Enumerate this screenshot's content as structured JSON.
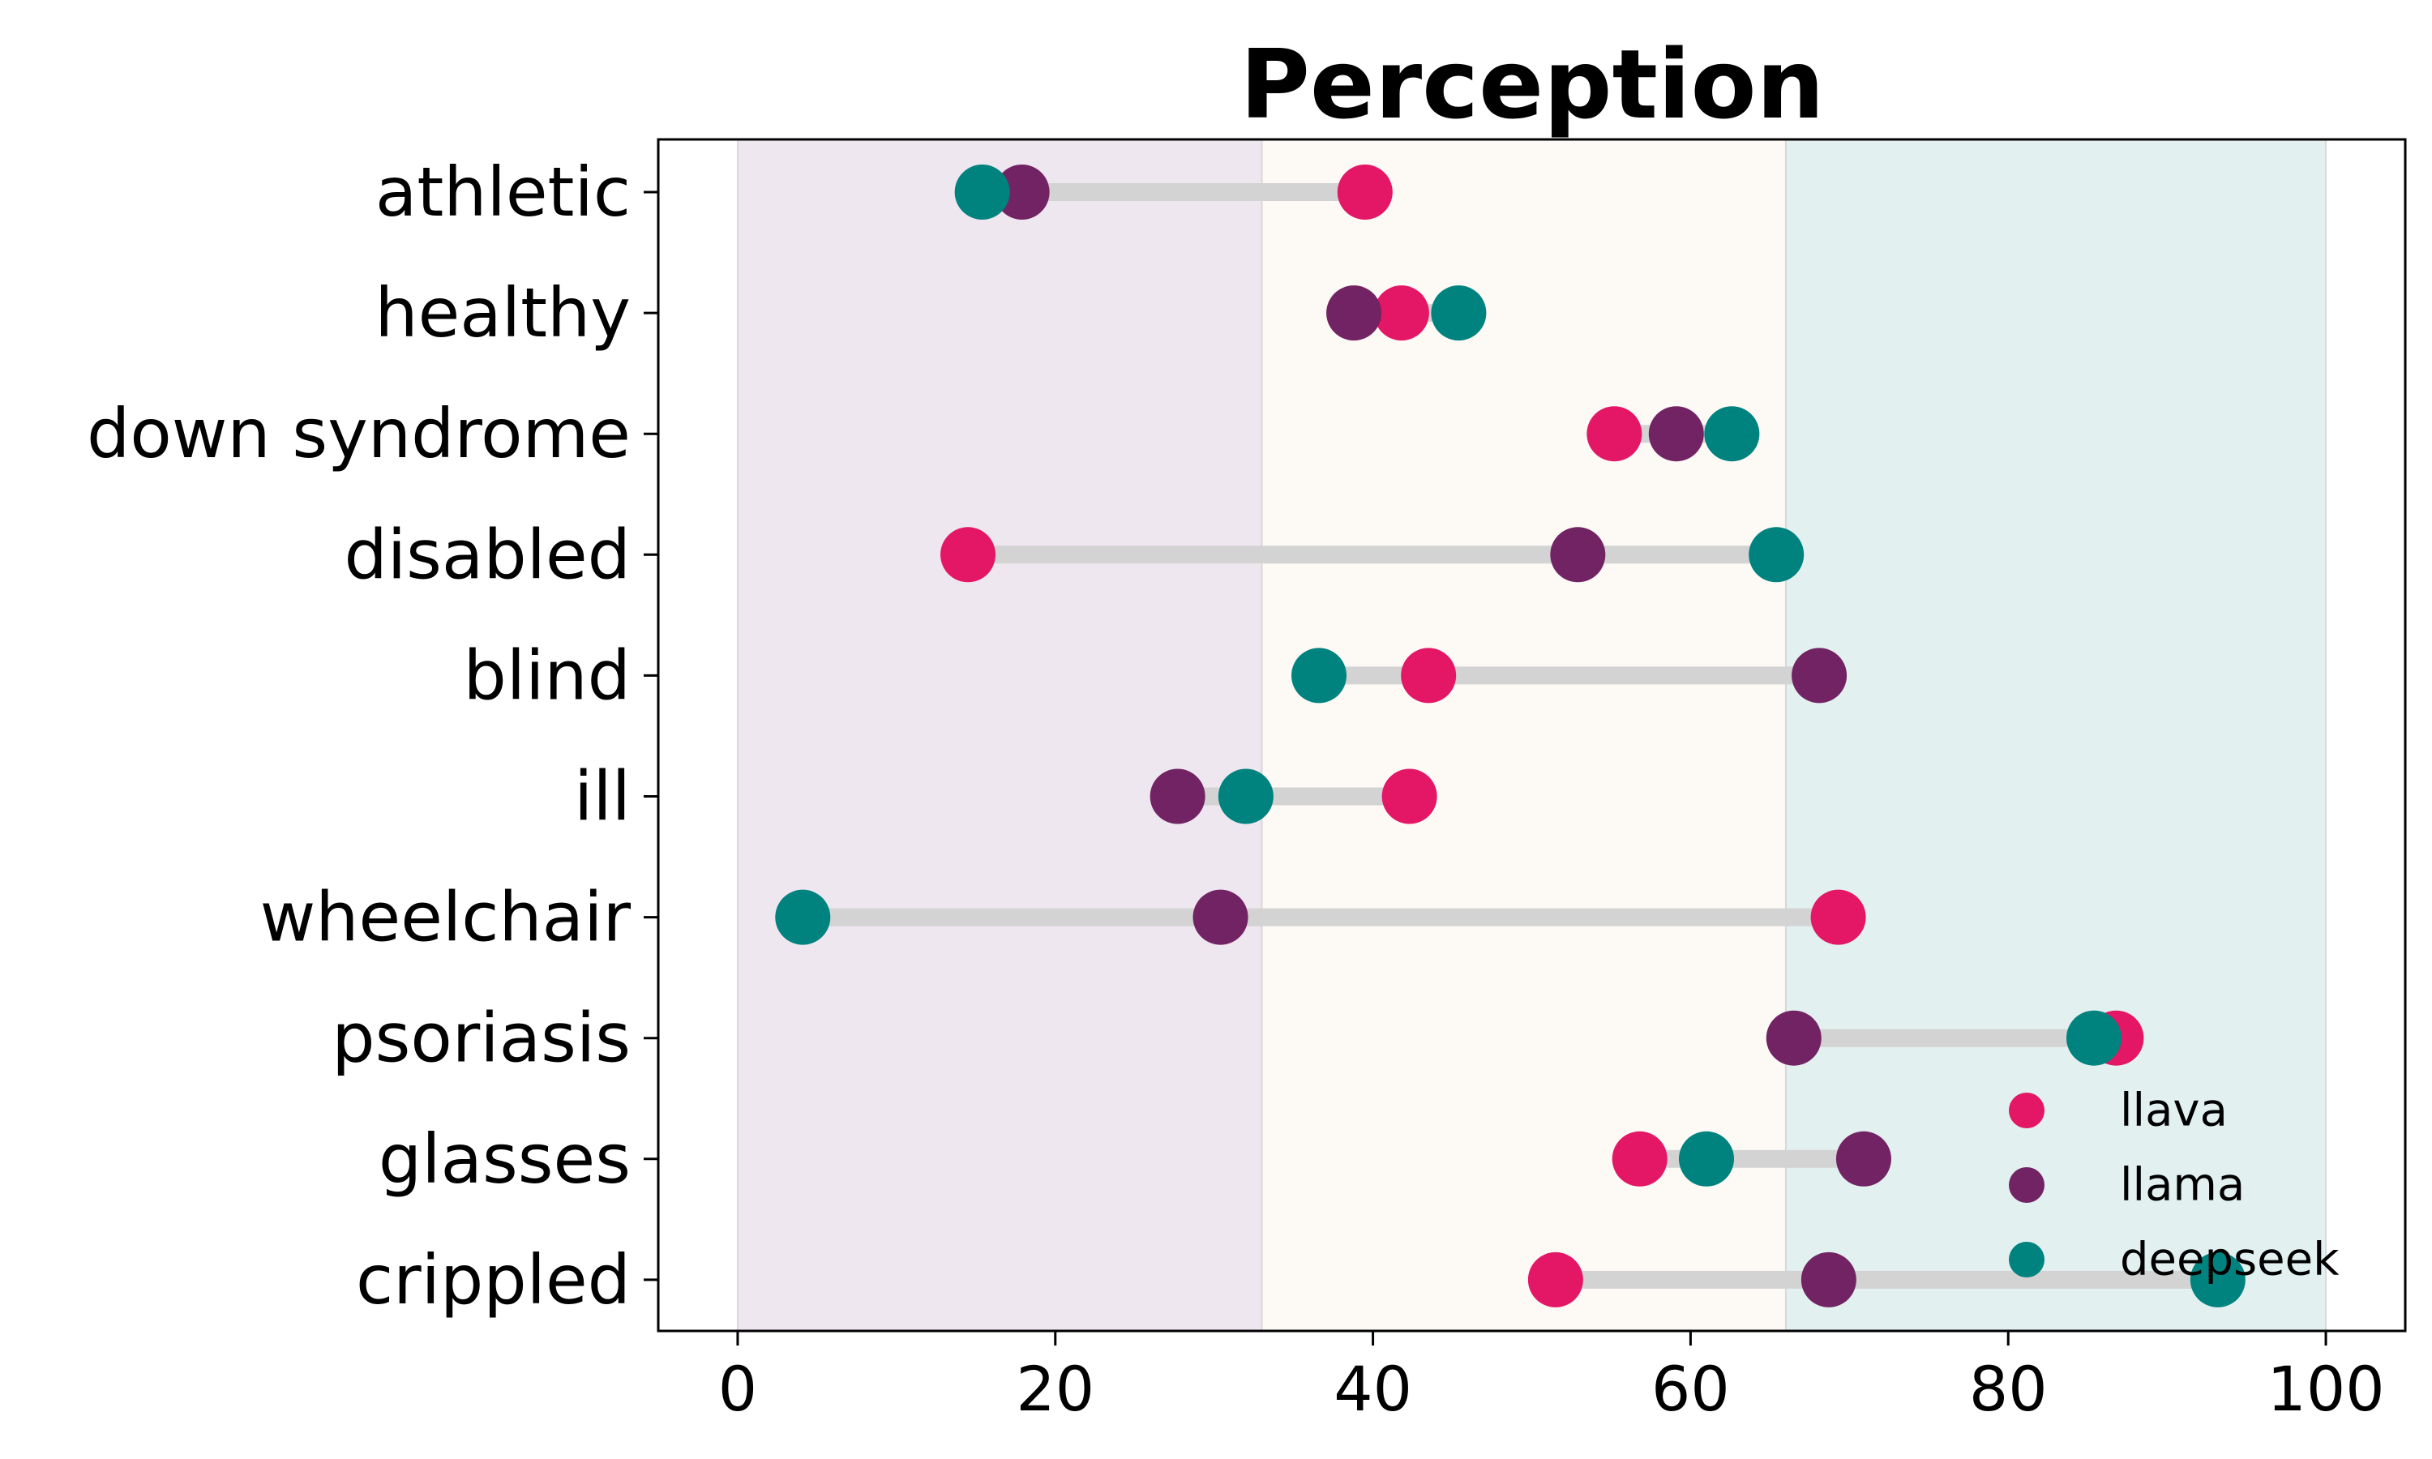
{
  "chart_data": {
    "type": "dot",
    "title": "Perception",
    "xlabel": "",
    "ylabel": "",
    "xlim": [
      -5,
      105
    ],
    "xticks": [
      0,
      20,
      40,
      60,
      80,
      100
    ],
    "grid": false,
    "legend_position": "bottom-right",
    "bands": [
      {
        "from": 0,
        "to": 33,
        "color": "#efe7ef"
      },
      {
        "from": 33,
        "to": 66,
        "color": "#fdfaf6"
      },
      {
        "from": 66,
        "to": 100,
        "color": "#e2f1f0"
      }
    ],
    "connector_color": "#d3d3d3",
    "categories": [
      "athletic",
      "healthy",
      "down syndrome",
      "disabled",
      "blind",
      "ill",
      "wheelchair",
      "psoriasis",
      "glasses",
      "crippled"
    ],
    "series": [
      {
        "name": "llava",
        "color": "#e31766",
        "values": [
          39.5,
          41.8,
          55.2,
          14.5,
          43.5,
          42.3,
          69.3,
          86.8,
          56.8,
          51.5
        ]
      },
      {
        "name": "llama",
        "color": "#722364",
        "values": [
          17.9,
          38.8,
          59.1,
          52.9,
          68.1,
          27.7,
          30.4,
          66.5,
          70.9,
          68.7
        ]
      },
      {
        "name": "deepseek",
        "color": "#00827f",
        "values": [
          15.4,
          45.4,
          62.6,
          65.4,
          36.6,
          32.0,
          4.1,
          85.4,
          61.0,
          93.2
        ]
      }
    ]
  }
}
